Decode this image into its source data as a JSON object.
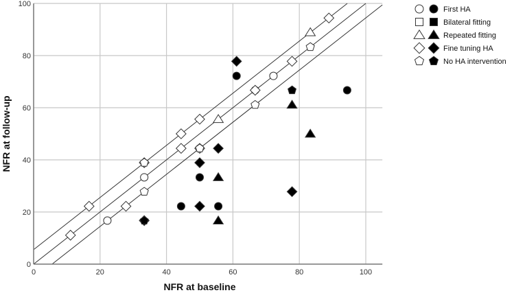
{
  "chart_data": {
    "type": "scatter",
    "title": "",
    "xlabel": "NFR at baseline",
    "ylabel": "NFR at follow-up",
    "xlim": [
      0,
      105
    ],
    "ylim": [
      0,
      100
    ],
    "xticks": [
      0,
      20,
      40,
      60,
      80,
      100
    ],
    "yticks": [
      0,
      20,
      40,
      60,
      80,
      100
    ],
    "grid": true,
    "legend_position": "top-right outside plot",
    "reference_lines": [
      {
        "name": "upper",
        "slope": 1,
        "intercept": 5.56
      },
      {
        "name": "identity",
        "slope": 1,
        "intercept": 0
      },
      {
        "name": "lower",
        "slope": 1,
        "intercept": -5.56
      }
    ],
    "legend": [
      {
        "label": "First HA",
        "marker": "circle"
      },
      {
        "label": "Bilateral fitting",
        "marker": "square"
      },
      {
        "label": "Repeated fitting",
        "marker": "triangle"
      },
      {
        "label": "Fine tuning HA",
        "marker": "diamond"
      },
      {
        "label": "No HA intervention",
        "marker": "pentagon"
      }
    ],
    "series": [
      {
        "name": "First HA (open)",
        "marker": "circle",
        "filled": false,
        "points": [
          [
            22.2,
            16.7
          ],
          [
            33.3,
            33.3
          ],
          [
            50,
            44.4
          ],
          [
            66.7,
            66.7
          ],
          [
            72.2,
            72.2
          ]
        ]
      },
      {
        "name": "First HA (filled)",
        "marker": "circle",
        "filled": true,
        "points": [
          [
            44.4,
            22.2
          ],
          [
            50,
            33.3
          ],
          [
            55.6,
            22.2
          ],
          [
            61.1,
            72.2
          ],
          [
            94.4,
            66.7
          ]
        ]
      },
      {
        "name": "Repeated fitting (open)",
        "marker": "triangle",
        "filled": false,
        "points": [
          [
            55.6,
            55.6
          ],
          [
            83.3,
            88.9
          ]
        ]
      },
      {
        "name": "Repeated fitting (filled)",
        "marker": "triangle",
        "filled": true,
        "points": [
          [
            55.6,
            16.7
          ],
          [
            55.6,
            33.3
          ],
          [
            77.8,
            61.1
          ],
          [
            83.3,
            50
          ]
        ]
      },
      {
        "name": "Fine tuning HA (open)",
        "marker": "diamond",
        "filled": false,
        "points": [
          [
            11.1,
            11.1
          ],
          [
            16.7,
            22.2
          ],
          [
            27.8,
            22.2
          ],
          [
            33.3,
            38.9
          ],
          [
            44.4,
            44.4
          ],
          [
            44.4,
            50
          ],
          [
            50,
            55.6
          ],
          [
            50,
            44.4
          ],
          [
            66.7,
            66.7
          ],
          [
            77.8,
            77.8
          ],
          [
            88.9,
            94.4
          ]
        ]
      },
      {
        "name": "Fine tuning HA (filled)",
        "marker": "diamond",
        "filled": true,
        "points": [
          [
            33.3,
            16.7
          ],
          [
            50,
            22.2
          ],
          [
            50,
            38.9
          ],
          [
            55.6,
            44.4
          ],
          [
            61.1,
            77.8
          ],
          [
            77.8,
            27.8
          ]
        ]
      },
      {
        "name": "No HA intervention (open)",
        "marker": "pentagon",
        "filled": false,
        "points": [
          [
            33.3,
            27.8
          ],
          [
            33.3,
            38.9
          ],
          [
            50,
            44.4
          ],
          [
            66.7,
            61.1
          ],
          [
            83.3,
            83.3
          ]
        ]
      },
      {
        "name": "No HA intervention (filled)",
        "marker": "pentagon",
        "filled": true,
        "points": [
          [
            33.3,
            16.7
          ],
          [
            77.8,
            66.7
          ]
        ]
      }
    ]
  }
}
